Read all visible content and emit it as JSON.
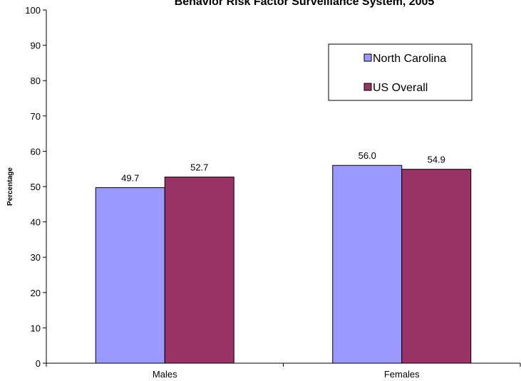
{
  "chart_data": {
    "type": "bar",
    "title": "Behavior Risk Factor Surveillance System, 2005",
    "xlabel": "",
    "ylabel": "Percentage",
    "ylim": [
      0,
      100
    ],
    "yticks": [
      0,
      10,
      20,
      30,
      40,
      50,
      60,
      70,
      80,
      90,
      100
    ],
    "categories": [
      "Males",
      "Females"
    ],
    "series": [
      {
        "name": "North Carolina",
        "values": [
          49.7,
          56.0
        ],
        "labels": [
          "49.7",
          "56.0"
        ],
        "color": "#9999ff"
      },
      {
        "name": "US Overall",
        "values": [
          52.7,
          54.9
        ],
        "labels": [
          "52.7",
          "54.9"
        ],
        "color": "#993366"
      }
    ],
    "grid": false,
    "legend_position": "top-right"
  }
}
